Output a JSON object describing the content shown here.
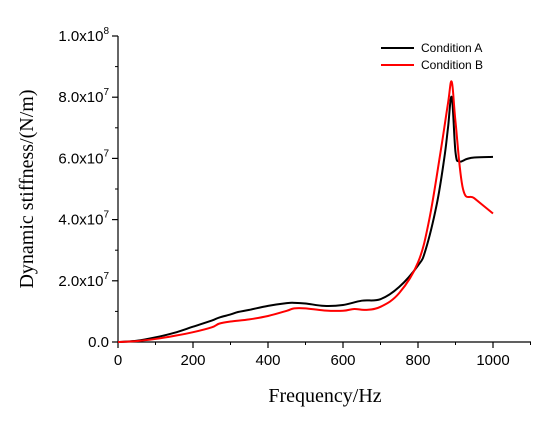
{
  "chart_data": {
    "type": "line",
    "xlabel": "Frequency/Hz",
    "ylabel": "Dynamic stiffness/(N/m)",
    "xlim": [
      0,
      1100
    ],
    "ylim": [
      0,
      100000000
    ],
    "x_ticks": [
      0,
      200,
      400,
      600,
      800,
      1000
    ],
    "x_tick_labels": [
      "0",
      "200",
      "400",
      "600",
      "800",
      "1000"
    ],
    "y_ticks": [
      0,
      20000000,
      40000000,
      60000000,
      80000000,
      100000000
    ],
    "y_tick_labels": [
      {
        "mantissa": "0.0",
        "exponent": ""
      },
      {
        "mantissa": "2.0x10",
        "exponent": "7"
      },
      {
        "mantissa": "4.0x10",
        "exponent": "7"
      },
      {
        "mantissa": "6.0x10",
        "exponent": "7"
      },
      {
        "mantissa": "8.0x10",
        "exponent": "7"
      },
      {
        "mantissa": "1.0x10",
        "exponent": "8"
      }
    ],
    "legend_position": "top-right",
    "grid": false,
    "series": [
      {
        "name": "Condition A",
        "color": "#000000",
        "x": [
          0,
          50,
          100,
          150,
          200,
          250,
          270,
          300,
          320,
          350,
          400,
          450,
          470,
          500,
          550,
          600,
          650,
          700,
          750,
          800,
          820,
          850,
          870,
          880,
          890,
          900,
          910,
          930,
          950,
          1000
        ],
        "y": [
          0,
          400000,
          1500000,
          3000000,
          5000000,
          7000000,
          8000000,
          9000000,
          9800000,
          10500000,
          11800000,
          12700000,
          12800000,
          12600000,
          11800000,
          12100000,
          13500000,
          14000000,
          18000000,
          25000000,
          30000000,
          45000000,
          60000000,
          70000000,
          80000000,
          62000000,
          59000000,
          59800000,
          60300000,
          60500000
        ]
      },
      {
        "name": "Condition B",
        "color": "#ff0000",
        "x": [
          0,
          50,
          100,
          150,
          200,
          250,
          270,
          300,
          350,
          400,
          450,
          470,
          500,
          550,
          600,
          630,
          660,
          700,
          750,
          800,
          830,
          860,
          880,
          890,
          900,
          920,
          950,
          1000
        ],
        "y": [
          0,
          300000,
          1000000,
          2000000,
          3200000,
          4800000,
          6000000,
          6700000,
          7400000,
          8500000,
          10200000,
          11000000,
          11000000,
          10300000,
          10200000,
          10800000,
          10500000,
          11500000,
          16000000,
          26000000,
          40000000,
          62000000,
          78000000,
          85000000,
          72000000,
          50000000,
          47000000,
          42000000
        ]
      }
    ]
  }
}
